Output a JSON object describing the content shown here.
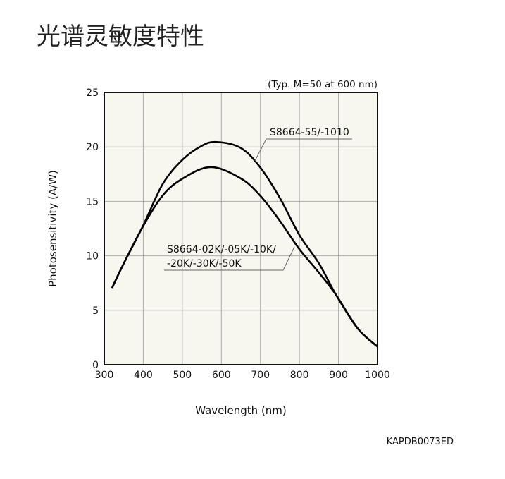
{
  "page_title": "光谱灵敏度特性",
  "chart_data": {
    "type": "line",
    "title": "光谱灵敏度特性",
    "condition_note": "(Typ. M=50 at 600 nm)",
    "xlabel": "Wavelength (nm)",
    "ylabel": "Photosensitivity (A/W)",
    "xlim": [
      300,
      1000
    ],
    "ylim": [
      0,
      25
    ],
    "xticks": [
      300,
      400,
      500,
      600,
      700,
      800,
      900,
      1000
    ],
    "yticks": [
      0,
      5,
      10,
      15,
      20,
      25
    ],
    "grid": true,
    "series": [
      {
        "name": "S8664-55/-1010",
        "x": [
          320,
          350,
          400,
          450,
          500,
          550,
          588,
          650,
          700,
          750,
          800,
          850,
          894,
          950,
          1000
        ],
        "y": [
          7.05,
          9.3,
          12.8,
          16.6,
          18.8,
          20.1,
          20.45,
          19.9,
          18.1,
          15.3,
          11.9,
          9.3,
          6.4,
          3.3,
          1.66
        ]
      },
      {
        "name": "S8664-02K/-05K/-10K/-20K/-30K/-50K",
        "x": [
          320,
          350,
          400,
          450,
          500,
          573,
          650,
          700,
          750,
          800,
          850,
          894,
          950,
          1000
        ],
        "y": [
          7.05,
          9.3,
          12.75,
          15.55,
          17.07,
          18.15,
          17.1,
          15.5,
          13.2,
          10.6,
          8.45,
          6.4,
          3.3,
          1.66
        ]
      }
    ],
    "labels": {
      "upper": "S8664-55/-1010",
      "lower_line1": "S8664-02K/-05K/-10K/",
      "lower_line2": "-20K/-30K/-50K"
    }
  },
  "figure_code": "KAPDB0073ED"
}
